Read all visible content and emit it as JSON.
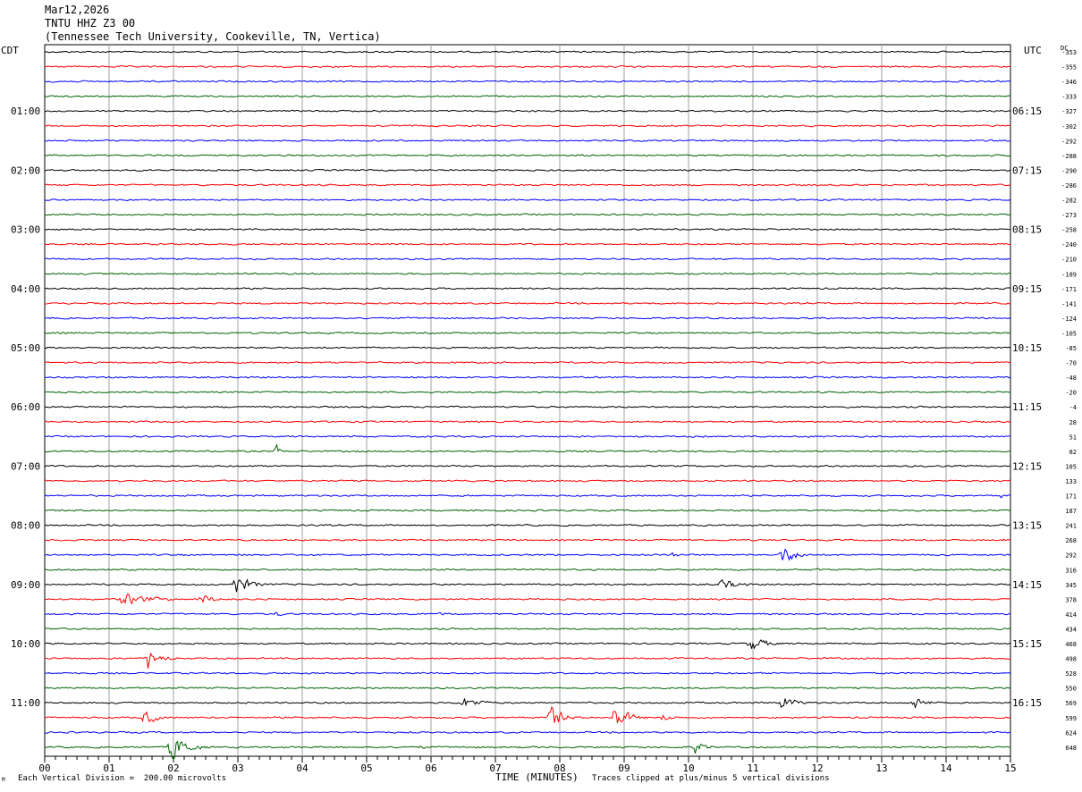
{
  "header": {
    "date": "Mar12,2026",
    "station": "TNTU HHZ Z3 00",
    "location": "(Tennessee Tech University, Cookeville, TN, Vertica)"
  },
  "left_tz": "CDT",
  "right_tz": "UTC",
  "dc_label": "DC",
  "footer": {
    "scale_note": "Each Vertical Division =  200.00 microvolts",
    "clip_note": "Traces clipped at plus/minus 5 vertical divisions",
    "corner_mark": "M"
  },
  "colors": {
    "trace_cycle": [
      "#000000",
      "#ff0000",
      "#0000ff",
      "#006400"
    ],
    "grid": "#a0a0a0"
  },
  "chart_data": {
    "type": "line",
    "xlabel": "TIME (MINUTES)",
    "x_ticks": [
      "00",
      "01",
      "02",
      "03",
      "04",
      "05",
      "06",
      "07",
      "08",
      "09",
      "10",
      "11",
      "12",
      "13",
      "14",
      "15"
    ],
    "xlim": [
      0,
      15
    ],
    "left_hour_labels": [
      "01:00",
      "02:00",
      "03:00",
      "04:00",
      "05:00",
      "06:00",
      "07:00",
      "08:00",
      "09:00",
      "10:00",
      "11:00"
    ],
    "right_hour_labels": [
      "06:15",
      "07:15",
      "08:15",
      "09:15",
      "10:15",
      "11:15",
      "12:15",
      "13:15",
      "14:15",
      "15:15",
      "16:15"
    ],
    "dc_offsets": [
      "-353",
      "-355",
      "-346",
      "-333",
      "-327",
      "-302",
      "-292",
      "-288",
      "-290",
      "-286",
      "-282",
      "-273",
      "-258",
      "-240",
      "-210",
      "-189",
      "-171",
      "-141",
      "-124",
      "-105",
      "-85",
      "-70",
      "-48",
      "-20",
      "-4",
      "28",
      "51",
      "82",
      "105",
      "133",
      "171",
      "187",
      "241",
      "268",
      "292",
      "316",
      "345",
      "378",
      "414",
      "434",
      "468",
      "498",
      "528",
      "550",
      "569",
      "599",
      "624",
      "648"
    ],
    "events": [
      {
        "trace": 27,
        "minute": 3.6,
        "amp": 9,
        "dur": 0.2
      },
      {
        "trace": 29,
        "minute": 13.85,
        "amp": 3,
        "dur": 0.15
      },
      {
        "trace": 30,
        "minute": 14.85,
        "amp": 4,
        "dur": 0.15
      },
      {
        "trace": 33,
        "minute": 14.9,
        "amp": 3,
        "dur": 0.15
      },
      {
        "trace": 34,
        "minute": 9.75,
        "amp": 5,
        "dur": 0.4
      },
      {
        "trace": 34,
        "minute": 11.45,
        "amp": 16,
        "dur": 0.6
      },
      {
        "trace": 35,
        "minute": 12.0,
        "amp": 3,
        "dur": 0.2
      },
      {
        "trace": 36,
        "minute": 2.95,
        "amp": 18,
        "dur": 0.6
      },
      {
        "trace": 36,
        "minute": 10.5,
        "amp": 9,
        "dur": 0.7
      },
      {
        "trace": 37,
        "minute": 1.2,
        "amp": 10,
        "dur": 1.3
      },
      {
        "trace": 37,
        "minute": 2.4,
        "amp": 8,
        "dur": 0.8
      },
      {
        "trace": 38,
        "minute": 3.6,
        "amp": 5,
        "dur": 0.3
      },
      {
        "trace": 38,
        "minute": 6.15,
        "amp": 4,
        "dur": 0.3
      },
      {
        "trace": 40,
        "minute": 10.95,
        "amp": 12,
        "dur": 0.7
      },
      {
        "trace": 41,
        "minute": 1.6,
        "amp": 20,
        "dur": 0.5
      },
      {
        "trace": 44,
        "minute": 6.5,
        "amp": 9,
        "dur": 0.8
      },
      {
        "trace": 44,
        "minute": 11.45,
        "amp": 12,
        "dur": 0.6
      },
      {
        "trace": 44,
        "minute": 13.5,
        "amp": 12,
        "dur": 0.5
      },
      {
        "trace": 45,
        "minute": 1.55,
        "amp": 13,
        "dur": 0.5
      },
      {
        "trace": 45,
        "minute": 7.85,
        "amp": 20,
        "dur": 0.5
      },
      {
        "trace": 45,
        "minute": 8.85,
        "amp": 20,
        "dur": 0.6
      },
      {
        "trace": 45,
        "minute": 9.6,
        "amp": 6,
        "dur": 0.5
      },
      {
        "trace": 47,
        "minute": 1.95,
        "amp": 22,
        "dur": 0.7
      },
      {
        "trace": 47,
        "minute": 5.85,
        "amp": 4,
        "dur": 0.3
      },
      {
        "trace": 47,
        "minute": 10.1,
        "amp": 10,
        "dur": 0.5
      }
    ]
  }
}
